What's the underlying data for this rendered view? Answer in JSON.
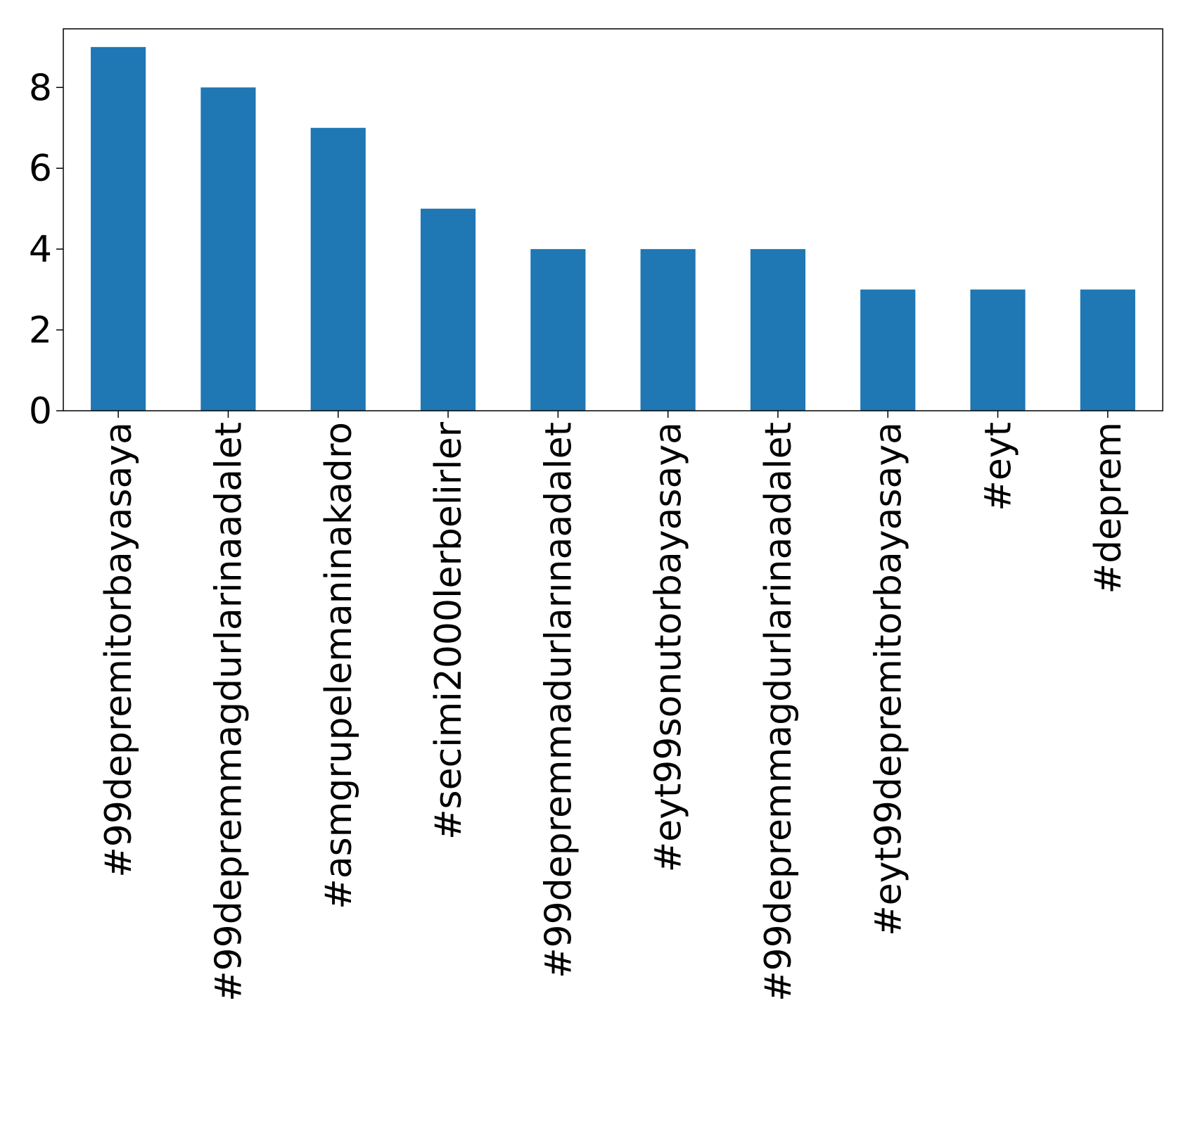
{
  "chart_data": {
    "type": "bar",
    "categories": [
      "#99depremitorbayasaya",
      "#99depremmagdurlarinaadalet",
      "#asmgrupelemaninakadro",
      "#secimi2000lerbelirler",
      "#99depremmadurlarınaadalet",
      "#eyt99sonutorbayasaya",
      "#99depremmagdurlarinaadalet",
      "#eyt99depremitorbayasaya",
      "#eyt",
      "#deprem"
    ],
    "values": [
      9,
      8,
      7,
      5,
      4,
      4,
      4,
      3,
      3,
      3
    ],
    "ylim": [
      0,
      9.45
    ],
    "yticks": [
      "0",
      "2",
      "4",
      "6",
      "8"
    ],
    "title": "",
    "xlabel": "",
    "ylabel": "",
    "bar_color": "#1f77b4",
    "grid": false,
    "legend": "none"
  }
}
